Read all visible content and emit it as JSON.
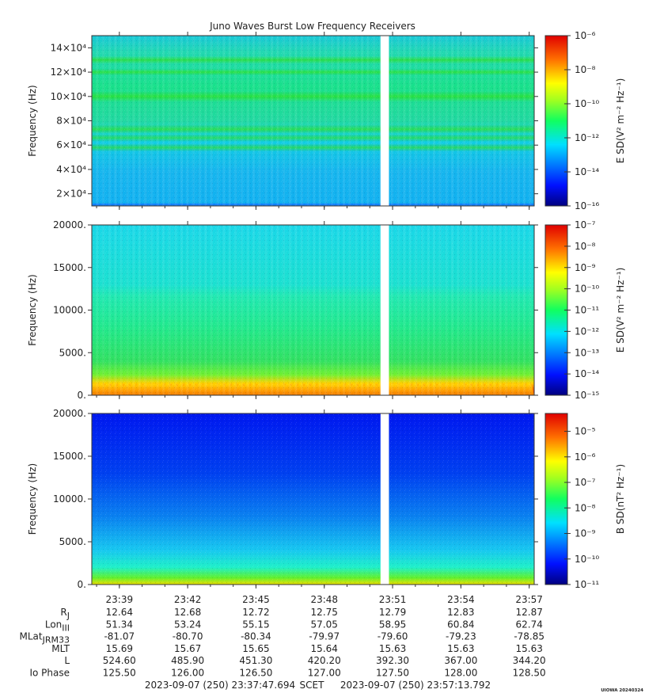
{
  "chart_data": [
    {
      "type": "heatmap",
      "title": "Juno Waves Burst Low Frequency Receivers",
      "ylabel": "Frequency (Hz)",
      "ylim": [
        10000,
        150000
      ],
      "yticks": [
        20000,
        40000,
        60000,
        80000,
        100000,
        120000,
        140000
      ],
      "ytick_labels": [
        "2×10⁴",
        "4×10⁴",
        "6×10⁴",
        "8×10⁴",
        "10×10⁴",
        "12×10⁴",
        "14×10⁴"
      ],
      "colorbar": {
        "label": "E SD(V² m⁻² Hz⁻¹)",
        "scale": "log",
        "range_exp": [
          -16,
          -6
        ],
        "tick_exps": [
          -16,
          -14,
          -12,
          -10,
          -8,
          -6
        ],
        "tick_labels": [
          "10⁻¹⁶",
          "10⁻¹⁴",
          "10⁻¹²",
          "10⁻¹⁰",
          "10⁻⁸",
          "10⁻⁶"
        ]
      }
    },
    {
      "type": "heatmap",
      "ylabel": "Frequency (Hz)",
      "ylim": [
        0,
        20000
      ],
      "yticks": [
        0,
        5000,
        10000,
        15000,
        20000
      ],
      "ytick_labels": [
        "0.",
        "5000.",
        "10000.",
        "15000.",
        "20000."
      ],
      "colorbar": {
        "label": "E SD(V² m⁻² Hz⁻¹)",
        "scale": "log",
        "range_exp": [
          -15,
          -7
        ],
        "tick_exps": [
          -15,
          -14,
          -13,
          -12,
          -11,
          -10,
          -9,
          -8,
          -7
        ],
        "tick_labels": [
          "10⁻¹⁵",
          "10⁻¹⁴",
          "10⁻¹³",
          "10⁻¹²",
          "10⁻¹¹",
          "10⁻¹⁰",
          "10⁻⁹",
          "10⁻⁸",
          "10⁻⁷"
        ]
      }
    },
    {
      "type": "heatmap",
      "ylabel": "Frequency (Hz)",
      "ylim": [
        0,
        20000
      ],
      "yticks": [
        0,
        5000,
        10000,
        15000,
        20000
      ],
      "ytick_labels": [
        "0.",
        "5000.",
        "10000.",
        "15000.",
        "20000."
      ],
      "colorbar": {
        "label": "B SD(nT² Hz⁻¹)",
        "scale": "log",
        "range_exp": [
          -11,
          -4.3
        ],
        "tick_exps": [
          -11,
          -10,
          -9,
          -8,
          -7,
          -6,
          -5
        ],
        "tick_labels": [
          "10⁻¹¹",
          "10⁻¹⁰",
          "10⁻⁹",
          "10⁻⁸",
          "10⁻⁷",
          "10⁻⁶",
          "10⁻⁵"
        ]
      }
    }
  ],
  "time_axis": {
    "start_min": 0,
    "end_min": 19.43,
    "gap_min": [
      12.68,
      13.05
    ],
    "tick_minutes": [
      1.21,
      4.21,
      7.21,
      10.21,
      13.21,
      16.21,
      19.21
    ],
    "tick_labels": [
      "23:39",
      "23:42",
      "23:45",
      "23:48",
      "23:51",
      "23:54",
      "23:57"
    ]
  },
  "ephemeris": {
    "rows": [
      {
        "name": "R",
        "sub": "J",
        "values": [
          "12.64",
          "12.68",
          "12.72",
          "12.75",
          "12.79",
          "12.83",
          "12.87"
        ]
      },
      {
        "name": "Lon",
        "sub": "III",
        "values": [
          "51.34",
          "53.24",
          "55.15",
          "57.05",
          "58.95",
          "60.84",
          "62.74"
        ]
      },
      {
        "name": "MLat",
        "sub": "JRM33",
        "values": [
          "-81.07",
          "-80.70",
          "-80.34",
          "-79.97",
          "-79.60",
          "-79.23",
          "-78.85"
        ]
      },
      {
        "name": "MLT",
        "sub": "",
        "values": [
          "15.69",
          "15.67",
          "15.65",
          "15.64",
          "15.63",
          "15.63",
          "15.63"
        ]
      },
      {
        "name": "L",
        "sub": "",
        "values": [
          "524.60",
          "485.90",
          "451.30",
          "420.20",
          "392.30",
          "367.00",
          "344.20"
        ]
      },
      {
        "name": "Io Phase",
        "sub": "",
        "values": [
          "125.50",
          "126.00",
          "126.50",
          "127.00",
          "127.50",
          "128.00",
          "128.50"
        ]
      }
    ]
  },
  "footer": {
    "start": "2023-09-07 (250) 23:37:47.694",
    "label": "SCET",
    "end": "2023-09-07 (250) 23:57:13.792",
    "credit": "UIOWA 20240324"
  }
}
